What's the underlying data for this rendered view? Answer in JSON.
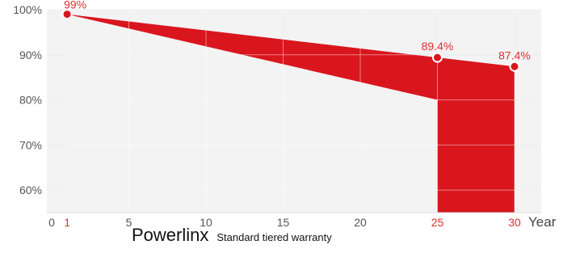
{
  "chart_data": {
    "type": "area",
    "title": "",
    "xlabel": "Year",
    "ylabel": "",
    "xlim": [
      0,
      31
    ],
    "ylim": [
      55,
      100
    ],
    "x_ticks": [
      0,
      1,
      5,
      10,
      15,
      20,
      25,
      30
    ],
    "x_ticks_highlighted": [
      1,
      25,
      30
    ],
    "y_ticks": [
      60,
      70,
      80,
      90,
      100
    ],
    "y_tick_labels": [
      "60%",
      "70%",
      "80%",
      "90%",
      "100%"
    ],
    "grid": true,
    "series": [
      {
        "x": [
          1,
          25,
          30
        ],
        "y": [
          99,
          89.4,
          87.4
        ],
        "labels": [
          "99%",
          "89.4%",
          "87.4%"
        ],
        "color": "#d9161e"
      },
      {
        "x": [
          1,
          25
        ],
        "y": [
          99,
          80
        ],
        "color": "#f3f3f3"
      }
    ]
  },
  "caption": {
    "brand": "Powerlinx",
    "subtitle": "Standard tiered warranty"
  }
}
